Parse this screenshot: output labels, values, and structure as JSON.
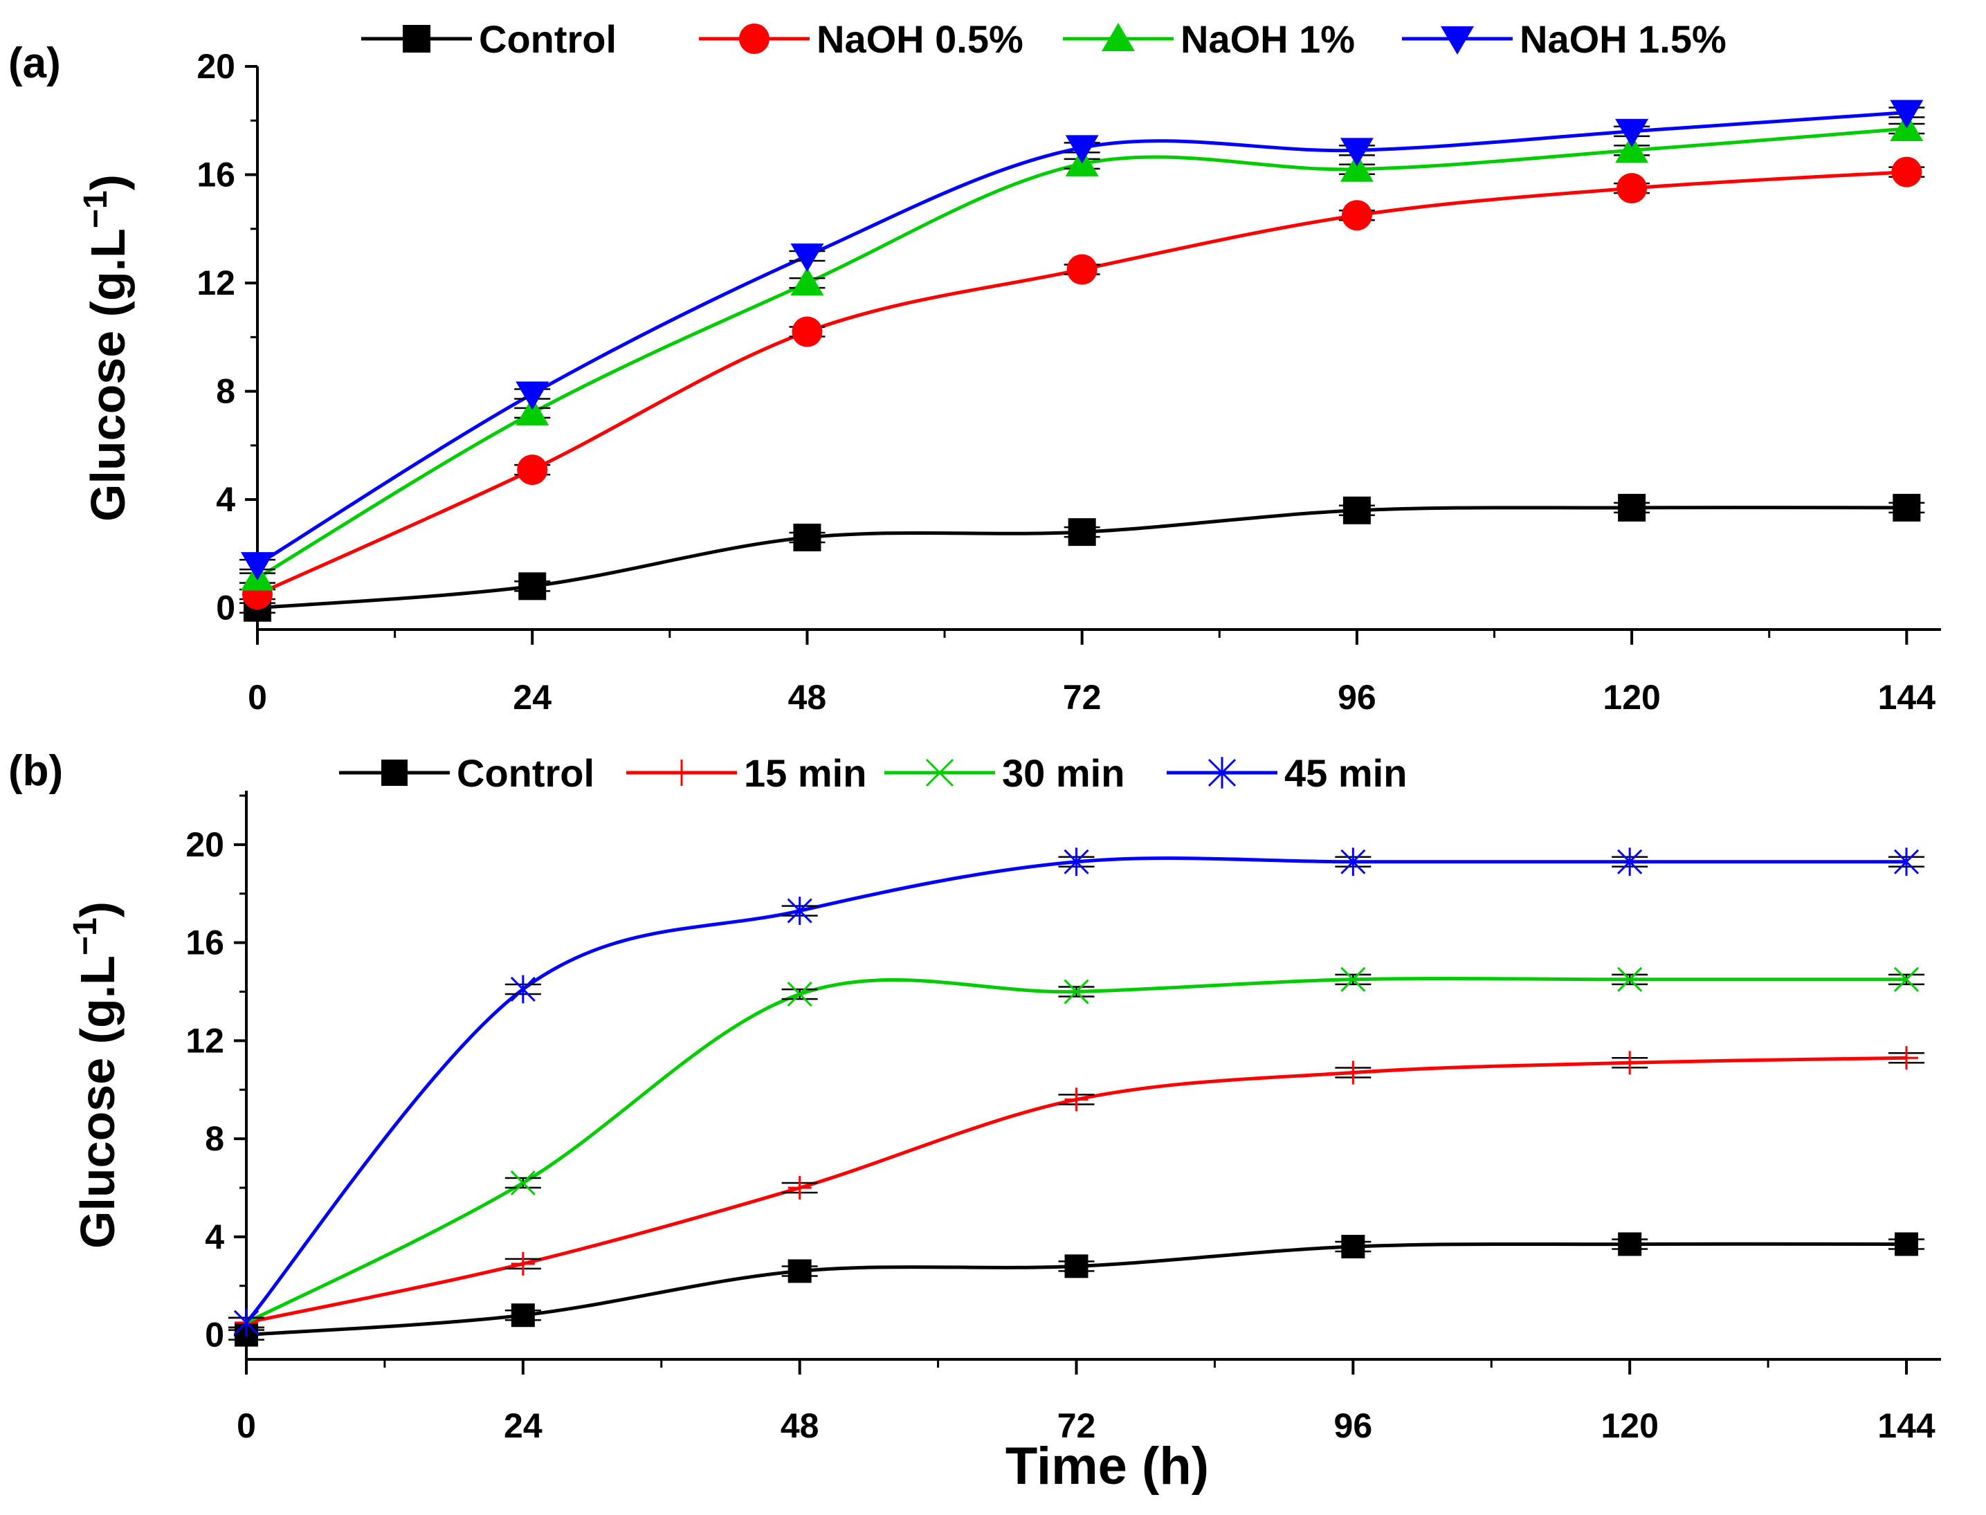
{
  "figure": {
    "xlabel": "Time (h)"
  },
  "chart_data": [
    {
      "panel": "(a)",
      "type": "line",
      "xlabel": "",
      "ylabel": "Glucose (g.L",
      "ylabel_sup": "−1",
      "ylabel_close": ")",
      "x": [
        0,
        24,
        48,
        72,
        96,
        120,
        144
      ],
      "xticks": [
        "0",
        "24",
        "48",
        "72",
        "96",
        "120",
        "144"
      ],
      "yticks": [
        "0",
        "4",
        "8",
        "12",
        "16",
        "20"
      ],
      "xlim": [
        0,
        147
      ],
      "ylim": [
        -0.8,
        20
      ],
      "series": [
        {
          "name": "Control",
          "color": "#000000",
          "marker": "square",
          "values": [
            0.0,
            0.8,
            2.6,
            2.8,
            3.6,
            3.7,
            3.7
          ]
        },
        {
          "name": "NaOH 0.5%",
          "color": "#ff0000",
          "marker": "circle",
          "values": [
            0.5,
            5.1,
            10.2,
            12.5,
            14.5,
            15.5,
            16.1
          ]
        },
        {
          "name": "NaOH 1%",
          "color": "#00cc00",
          "marker": "triangle-up",
          "values": [
            1.1,
            7.2,
            12.0,
            16.4,
            16.2,
            16.9,
            17.7
          ]
        },
        {
          "name": "NaOH 1.5%",
          "color": "#0000ff",
          "marker": "triangle-down",
          "values": [
            1.6,
            7.9,
            13.0,
            17.0,
            16.9,
            17.6,
            18.3
          ]
        }
      ]
    },
    {
      "panel": "(b)",
      "type": "line",
      "xlabel": "Time (h)",
      "ylabel": "Glucose (g.L",
      "ylabel_sup": "−1",
      "ylabel_close": ")",
      "x": [
        0,
        24,
        48,
        72,
        96,
        120,
        144
      ],
      "xticks": [
        "0",
        "24",
        "48",
        "72",
        "96",
        "120",
        "144"
      ],
      "yticks": [
        "0",
        "4",
        "8",
        "12",
        "16",
        "20"
      ],
      "xlim": [
        0,
        147
      ],
      "ylim": [
        -1.0,
        22.2
      ],
      "series": [
        {
          "name": "Control",
          "color": "#000000",
          "marker": "square",
          "values": [
            0.0,
            0.8,
            2.6,
            2.8,
            3.6,
            3.7,
            3.7
          ]
        },
        {
          "name": "15 min",
          "color": "#ff0000",
          "marker": "plus",
          "values": [
            0.5,
            2.9,
            6.0,
            9.6,
            10.7,
            11.1,
            11.3
          ]
        },
        {
          "name": "30 min",
          "color": "#00cc00",
          "marker": "cross",
          "values": [
            0.5,
            6.2,
            13.9,
            14.0,
            14.5,
            14.5,
            14.5
          ]
        },
        {
          "name": "45 min",
          "color": "#0000ff",
          "marker": "asterisk",
          "values": [
            0.5,
            14.1,
            17.3,
            19.3,
            19.3,
            19.3,
            19.3
          ]
        }
      ]
    }
  ]
}
